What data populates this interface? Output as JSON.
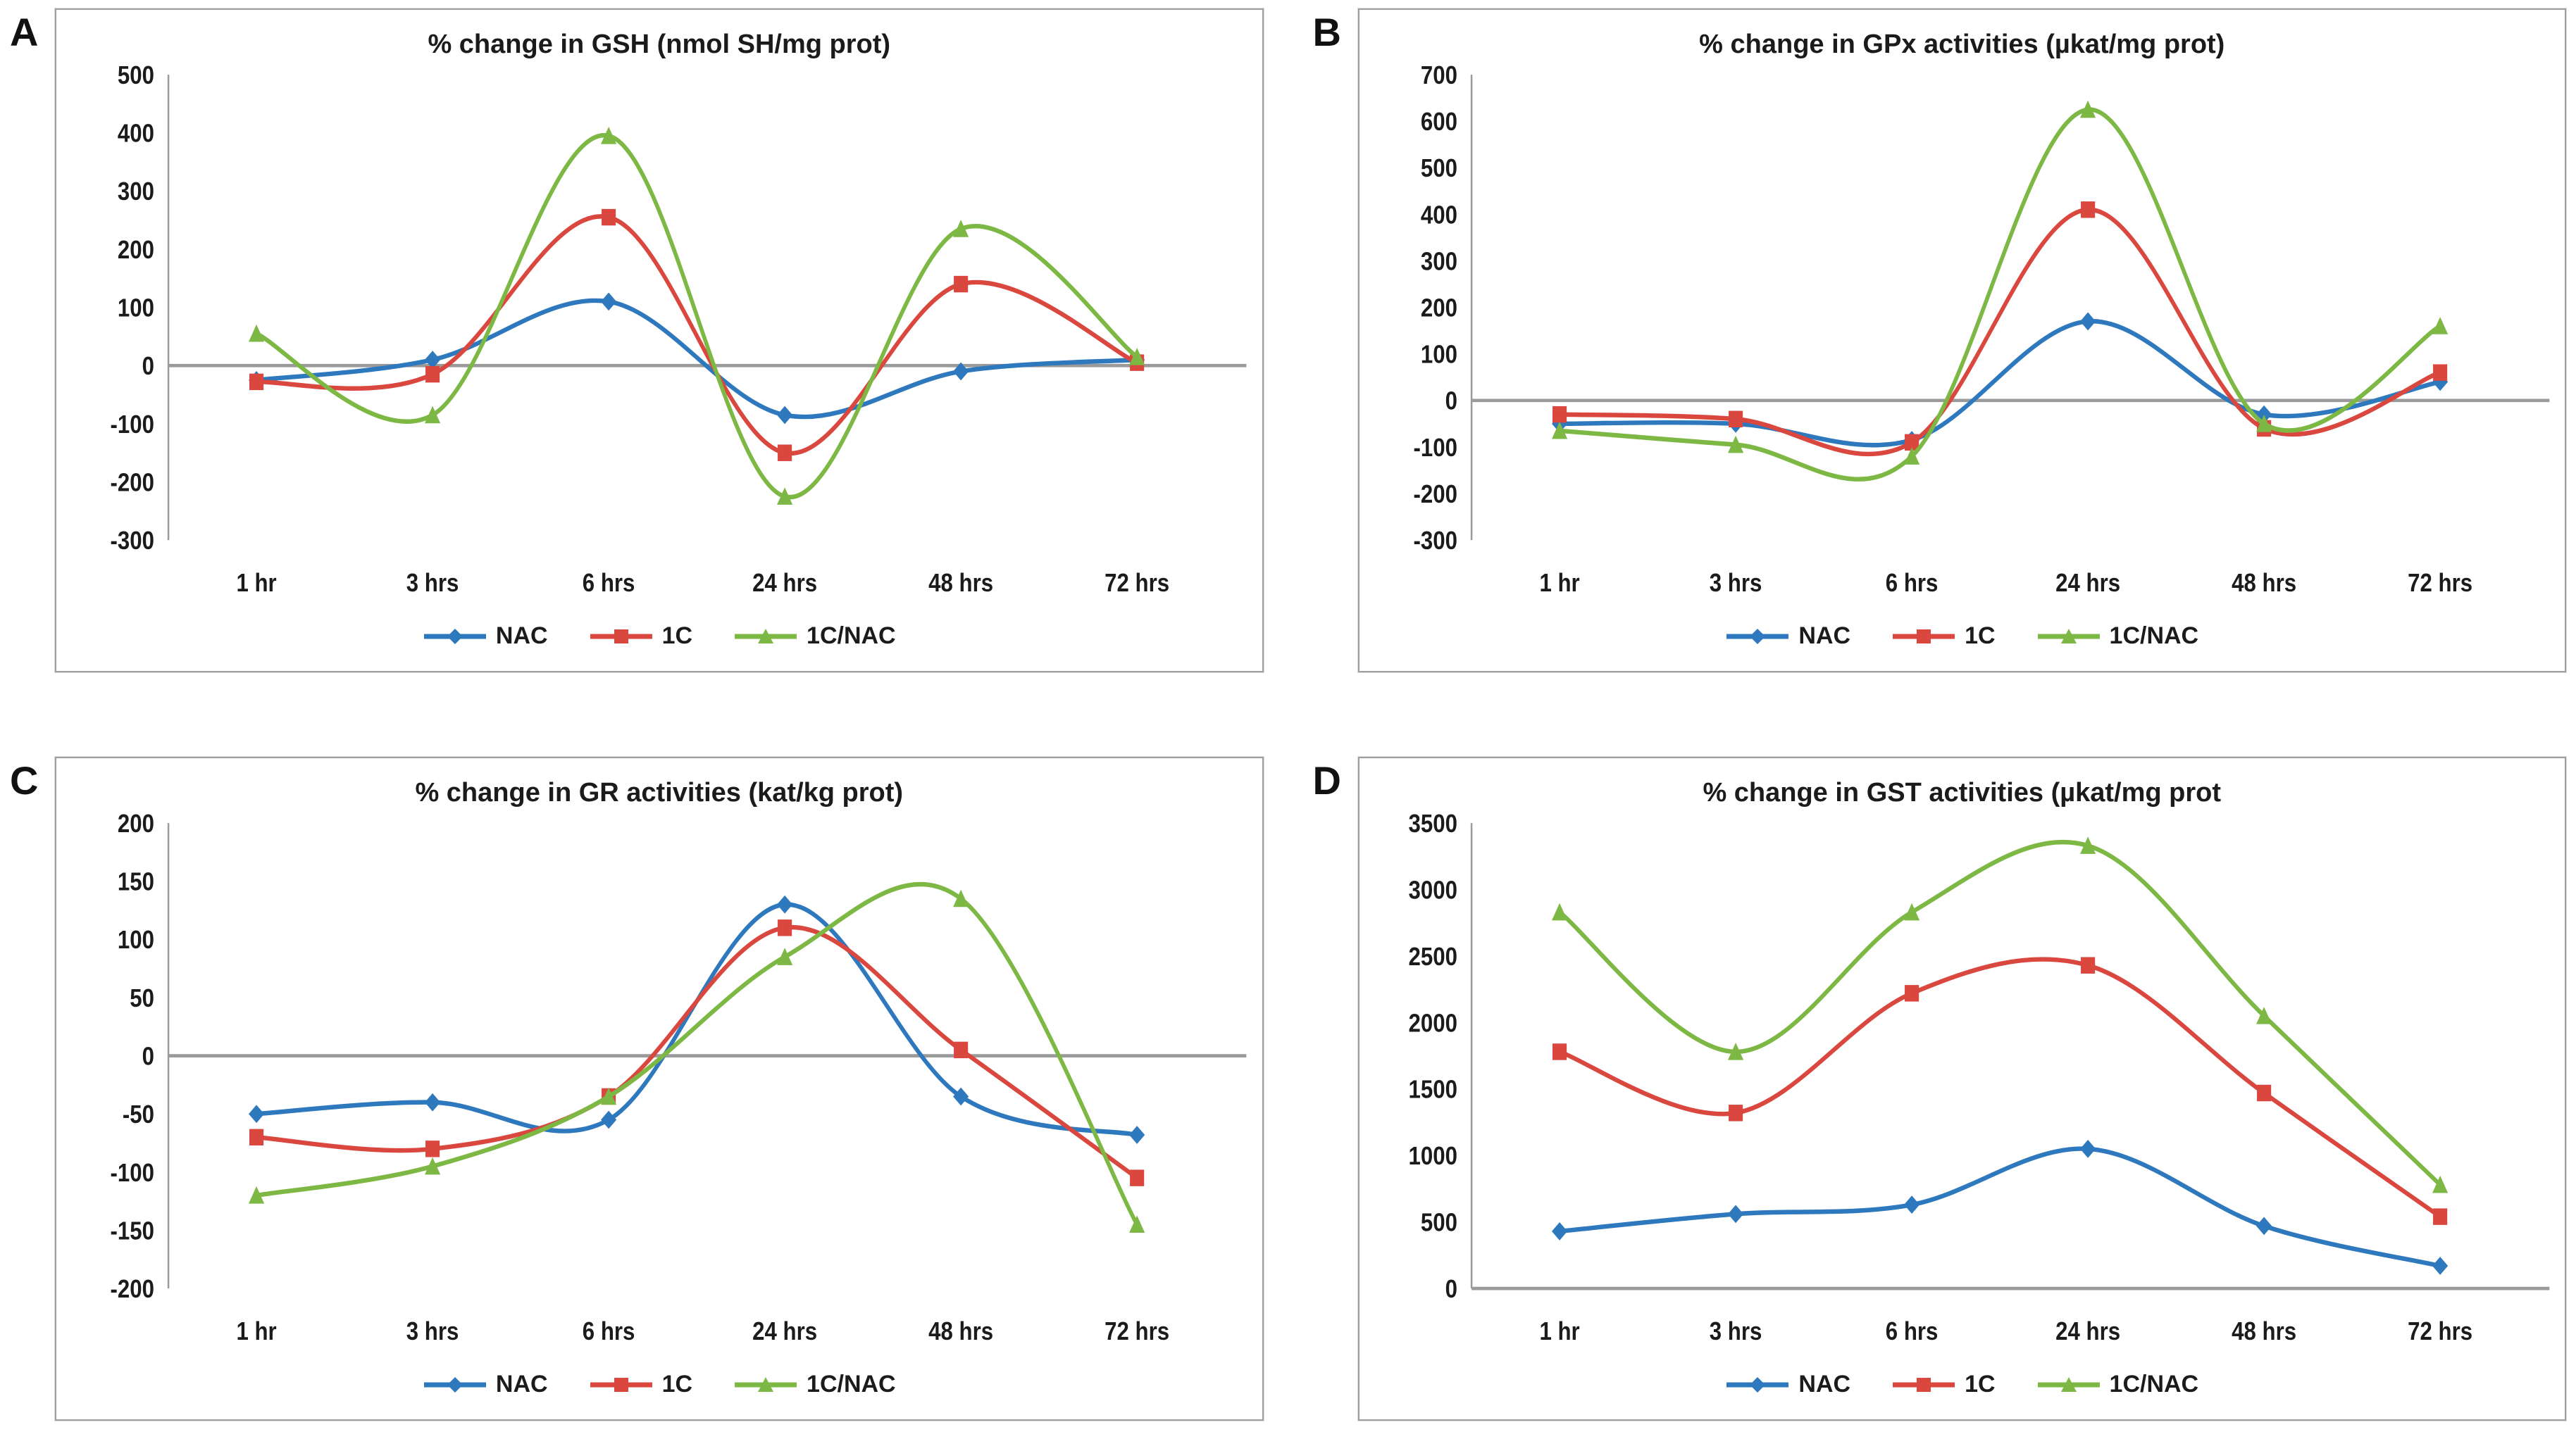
{
  "figure_title": "",
  "series_palette": {
    "nac_blue": "#2E78BE",
    "onec_red": "#D9473F",
    "onec_nac_green": "#7CB843",
    "axis_gray": "#9a9a9a"
  },
  "chart_data": [
    {
      "type": "line",
      "panel_label": "A",
      "title": "% change in GSH (nmol SH/mg prot)",
      "xlabel": "",
      "ylabel": "",
      "categories": [
        "1 hr",
        "3 hrs",
        "6 hrs",
        "24 hrs",
        "48 hrs",
        "72 hrs"
      ],
      "ylim": [
        -300,
        500
      ],
      "ytick_step": 100,
      "grid": false,
      "smooth": true,
      "zero_line": true,
      "legend_position": "bottom",
      "series": [
        {
          "name": "NAC",
          "color": "#2E78BE",
          "marker": "diamond",
          "values": [
            -25,
            10,
            110,
            -85,
            -10,
            10
          ]
        },
        {
          "name": "1C",
          "color": "#D9473F",
          "marker": "square",
          "values": [
            -28,
            -15,
            255,
            -150,
            140,
            5
          ]
        },
        {
          "name": "1C/NAC",
          "color": "#7CB843",
          "marker": "triangle",
          "values": [
            55,
            -85,
            395,
            -225,
            235,
            15
          ]
        }
      ]
    },
    {
      "type": "line",
      "panel_label": "B",
      "title": "% change in GPx activities (µkat/mg prot)",
      "xlabel": "",
      "ylabel": "",
      "categories": [
        "1 hr",
        "3 hrs",
        "6 hrs",
        "24 hrs",
        "48 hrs",
        "72 hrs"
      ],
      "ylim": [
        -300,
        700
      ],
      "ytick_step": 100,
      "grid": false,
      "smooth": true,
      "zero_line": true,
      "legend_position": "bottom",
      "series": [
        {
          "name": "NAC",
          "color": "#2E78BE",
          "marker": "diamond",
          "values": [
            -50,
            -50,
            -85,
            170,
            -30,
            40
          ]
        },
        {
          "name": "1C",
          "color": "#D9473F",
          "marker": "square",
          "values": [
            -30,
            -40,
            -90,
            410,
            -60,
            60
          ]
        },
        {
          "name": "1C/NAC",
          "color": "#7CB843",
          "marker": "triangle",
          "values": [
            -65,
            -95,
            -120,
            625,
            -50,
            160
          ]
        }
      ]
    },
    {
      "type": "line",
      "panel_label": "C",
      "title": "% change in GR activities (kat/kg prot)",
      "xlabel": "",
      "ylabel": "",
      "categories": [
        "1 hr",
        "3 hrs",
        "6 hrs",
        "24 hrs",
        "48 hrs",
        "72 hrs"
      ],
      "ylim": [
        -200,
        200
      ],
      "ytick_step": 50,
      "grid": false,
      "smooth": true,
      "zero_line": true,
      "legend_position": "bottom",
      "series": [
        {
          "name": "NAC",
          "color": "#2E78BE",
          "marker": "diamond",
          "values": [
            -50,
            -40,
            -55,
            130,
            -35,
            -68
          ]
        },
        {
          "name": "1C",
          "color": "#D9473F",
          "marker": "square",
          "values": [
            -70,
            -80,
            -35,
            110,
            5,
            -105
          ]
        },
        {
          "name": "1C/NAC",
          "color": "#7CB843",
          "marker": "triangle",
          "values": [
            -120,
            -95,
            -35,
            85,
            135,
            -145
          ]
        }
      ]
    },
    {
      "type": "line",
      "panel_label": "D",
      "title": "% change in GST activities (µkat/mg prot",
      "xlabel": "",
      "ylabel": "",
      "categories": [
        "1 hr",
        "3 hrs",
        "6 hrs",
        "24 hrs",
        "48 hrs",
        "72 hrs"
      ],
      "ylim": [
        0,
        3500
      ],
      "ytick_step": 500,
      "grid": false,
      "smooth": true,
      "zero_line": true,
      "legend_position": "bottom",
      "series": [
        {
          "name": "NAC",
          "color": "#2E78BE",
          "marker": "diamond",
          "values": [
            430,
            560,
            630,
            1050,
            470,
            170
          ]
        },
        {
          "name": "1C",
          "color": "#D9473F",
          "marker": "square",
          "values": [
            1780,
            1320,
            2220,
            2430,
            1470,
            540
          ]
        },
        {
          "name": "1C/NAC",
          "color": "#7CB843",
          "marker": "triangle",
          "values": [
            2830,
            1780,
            2830,
            3330,
            2050,
            780
          ]
        }
      ]
    }
  ]
}
